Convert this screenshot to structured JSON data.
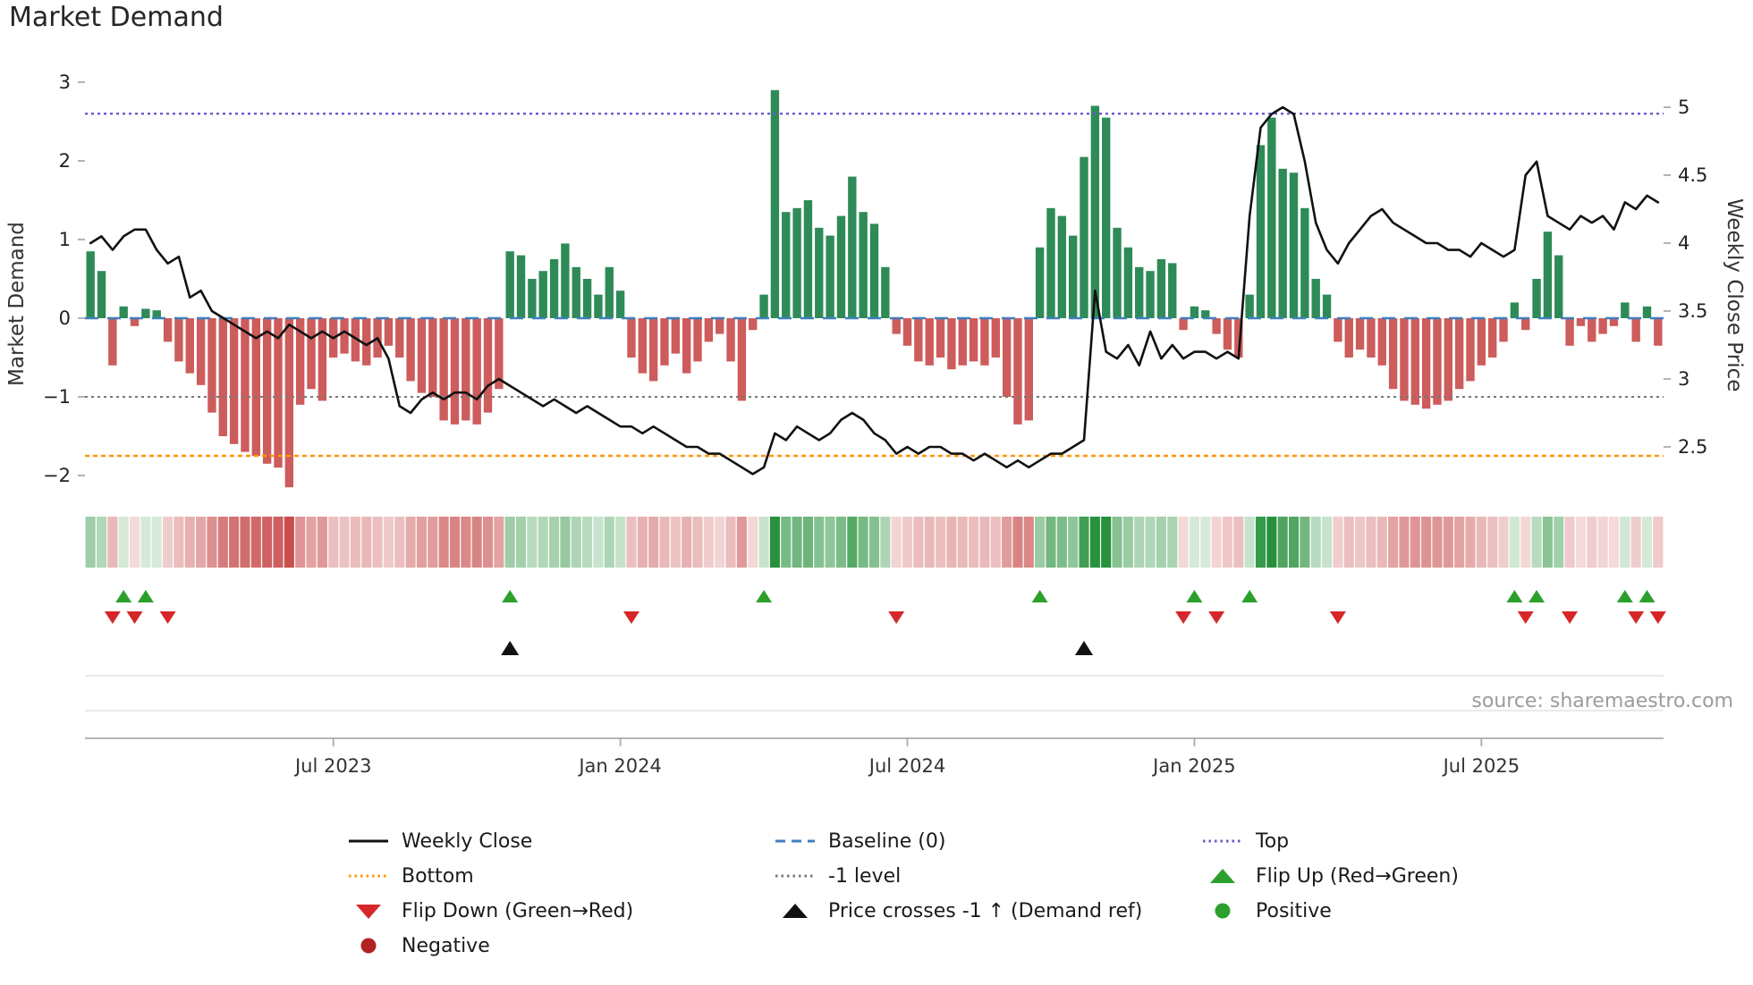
{
  "page": {
    "title": "Market Demand",
    "source": "source: sharemaestro.com"
  },
  "chart_data": {
    "type": "bar",
    "title": "Market Demand",
    "left_axis": {
      "label": "Market Demand",
      "ticks": [
        {
          "v": 3,
          "label": "3"
        },
        {
          "v": 2,
          "label": "2"
        },
        {
          "v": 1,
          "label": "1"
        },
        {
          "v": 0,
          "label": "0"
        },
        {
          "v": -1,
          "label": "−1"
        },
        {
          "v": -2,
          "label": "−2"
        }
      ]
    },
    "right_axis": {
      "label": "Weekly Close Price",
      "ticks": [
        {
          "v": 5,
          "label": "5"
        },
        {
          "v": 4.5,
          "label": "4.5"
        },
        {
          "v": 4,
          "label": "4"
        },
        {
          "v": 3.5,
          "label": "3.5"
        },
        {
          "v": 3,
          "label": "3"
        },
        {
          "v": 2.5,
          "label": "2.5"
        }
      ]
    },
    "x_ticks": [
      {
        "week": 22,
        "label": "Jul 2023"
      },
      {
        "week": 48,
        "label": "Jan 2024"
      },
      {
        "week": 74,
        "label": "Jul 2024"
      },
      {
        "week": 100,
        "label": "Jan 2025"
      },
      {
        "week": 126,
        "label": "Jul 2025"
      }
    ],
    "reference_lines": {
      "baseline": 0,
      "top": 2.6,
      "minus_one": -1,
      "bottom": -1.75
    },
    "demand": [
      0.85,
      0.6,
      -0.6,
      0.15,
      -0.1,
      0.12,
      0.1,
      -0.3,
      -0.55,
      -0.7,
      -0.85,
      -1.2,
      -1.5,
      -1.6,
      -1.7,
      -1.75,
      -1.85,
      -1.9,
      -2.15,
      -1.1,
      -0.9,
      -1.05,
      -0.5,
      -0.45,
      -0.55,
      -0.6,
      -0.5,
      -0.35,
      -0.5,
      -0.8,
      -0.95,
      -1.0,
      -1.3,
      -1.35,
      -1.3,
      -1.35,
      -1.2,
      -0.9,
      0.85,
      0.8,
      0.5,
      0.6,
      0.75,
      0.95,
      0.65,
      0.5,
      0.3,
      0.65,
      0.35,
      -0.5,
      -0.7,
      -0.8,
      -0.6,
      -0.45,
      -0.7,
      -0.55,
      -0.3,
      -0.2,
      -0.55,
      -1.05,
      -0.15,
      0.3,
      2.9,
      1.35,
      1.4,
      1.5,
      1.15,
      1.05,
      1.3,
      1.8,
      1.35,
      1.2,
      0.65,
      -0.2,
      -0.35,
      -0.55,
      -0.6,
      -0.5,
      -0.65,
      -0.6,
      -0.55,
      -0.6,
      -0.5,
      -1.0,
      -1.35,
      -1.3,
      0.9,
      1.4,
      1.3,
      1.05,
      2.05,
      2.7,
      2.55,
      1.15,
      0.9,
      0.65,
      0.6,
      0.75,
      0.7,
      -0.15,
      0.15,
      0.1,
      -0.2,
      -0.4,
      -0.5,
      0.3,
      2.2,
      2.55,
      1.9,
      1.85,
      1.4,
      0.5,
      0.3,
      -0.3,
      -0.5,
      -0.4,
      -0.5,
      -0.6,
      -0.9,
      -1.05,
      -1.1,
      -1.15,
      -1.1,
      -1.05,
      -0.9,
      -0.8,
      -0.6,
      -0.5,
      -0.3,
      0.2,
      -0.15,
      0.5,
      1.1,
      0.8,
      -0.35,
      -0.1,
      -0.3,
      -0.2,
      -0.1,
      0.2,
      -0.3,
      0.15,
      -0.35
    ],
    "price": [
      4.0,
      4.05,
      3.95,
      4.05,
      4.1,
      4.1,
      3.95,
      3.85,
      3.9,
      3.6,
      3.65,
      3.5,
      3.45,
      3.4,
      3.35,
      3.3,
      3.35,
      3.3,
      3.4,
      3.35,
      3.3,
      3.35,
      3.3,
      3.35,
      3.3,
      3.25,
      3.3,
      3.15,
      2.8,
      2.75,
      2.85,
      2.9,
      2.85,
      2.9,
      2.9,
      2.85,
      2.95,
      3.0,
      2.95,
      2.9,
      2.85,
      2.8,
      2.85,
      2.8,
      2.75,
      2.8,
      2.75,
      2.7,
      2.65,
      2.65,
      2.6,
      2.65,
      2.6,
      2.55,
      2.5,
      2.5,
      2.45,
      2.45,
      2.4,
      2.35,
      2.3,
      2.35,
      2.6,
      2.55,
      2.65,
      2.6,
      2.55,
      2.6,
      2.7,
      2.75,
      2.7,
      2.6,
      2.55,
      2.45,
      2.5,
      2.45,
      2.5,
      2.5,
      2.45,
      2.45,
      2.4,
      2.45,
      2.4,
      2.35,
      2.4,
      2.35,
      2.4,
      2.45,
      2.45,
      2.5,
      2.55,
      3.65,
      3.2,
      3.15,
      3.25,
      3.1,
      3.35,
      3.15,
      3.25,
      3.15,
      3.2,
      3.2,
      3.15,
      3.2,
      3.15,
      4.2,
      4.85,
      4.95,
      5.0,
      4.95,
      4.6,
      4.15,
      3.95,
      3.85,
      4.0,
      4.1,
      4.2,
      4.25,
      4.15,
      4.1,
      4.05,
      4.0,
      4.0,
      3.95,
      3.95,
      3.9,
      4.0,
      3.95,
      3.9,
      3.95,
      4.5,
      4.6,
      4.2,
      4.15,
      4.1,
      4.2,
      4.15,
      4.2,
      4.1,
      4.3,
      4.25,
      4.35,
      4.3
    ],
    "markers": {
      "flip_up_weeks": [
        3,
        5,
        38,
        61,
        86,
        100,
        105,
        129,
        131,
        139,
        141
      ],
      "flip_down_weeks": [
        2,
        4,
        7,
        49,
        73,
        99,
        102,
        113,
        130,
        134,
        140,
        142
      ],
      "price_cross_weeks": [
        38,
        90
      ]
    },
    "colors": {
      "positive_bar": "#2e8b57",
      "negative_bar": "#cd5c5c",
      "price_line": "#111111",
      "baseline": "#3f7fbf",
      "top": "#6a5acd",
      "bottom": "#ff9800",
      "minus_one": "#787878",
      "flip_up": "#2ca02c",
      "flip_down": "#d62728",
      "price_cross": "#111111",
      "heat_pos_rgb": [
        40,
        145,
        60
      ],
      "heat_neg_rgb": [
        195,
        60,
        60
      ]
    }
  },
  "legend": {
    "items": [
      {
        "label": "Weekly Close",
        "swatch": "line-solid",
        "color": "#111111"
      },
      {
        "label": "Baseline (0)",
        "swatch": "line-dashed",
        "color": "#3f7fbf"
      },
      {
        "label": "Top",
        "swatch": "line-dotted",
        "color": "#6a5acd"
      },
      {
        "label": "Bottom",
        "swatch": "line-dotted",
        "color": "#ff9800"
      },
      {
        "label": "-1 level",
        "swatch": "line-dotted",
        "color": "#787878"
      },
      {
        "label": "Flip Up (Red→Green)",
        "swatch": "triangle-up",
        "color": "#2ca02c"
      },
      {
        "label": "Flip Down (Green→Red)",
        "swatch": "triangle-down",
        "color": "#d62728"
      },
      {
        "label": "Price crosses -1 ↑ (Demand ref)",
        "swatch": "triangle-up",
        "color": "#111111"
      },
      {
        "label": "Positive",
        "swatch": "circle",
        "color": "#2ca02c"
      },
      {
        "label": "Negative",
        "swatch": "circle",
        "color": "#b22222"
      }
    ]
  }
}
